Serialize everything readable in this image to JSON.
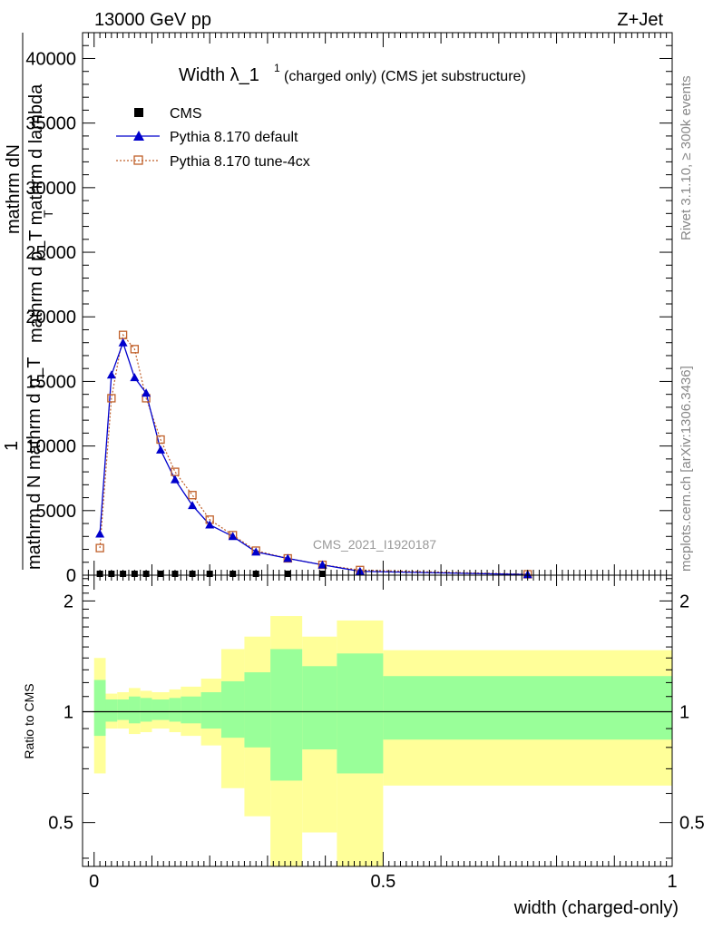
{
  "header": {
    "energy_label": "13000 GeV pp",
    "process_label": "Z+Jet",
    "rivet_label": "Rivet 3.1.10, ≥ 300k events",
    "mcplots_label": "mcplots.cern.ch [arXiv:1306.3436]",
    "analysis_label": "CMS_2021_I1920187"
  },
  "chart_data": [
    {
      "type": "line",
      "title_main": "Width λ_1",
      "title_sup": "1",
      "title_sub": "(charged only) (CMS jet substructure)",
      "ylabel_top": "mathrm dN",
      "ylabel_mid": "mathrm d p_T mathrm d lambda",
      "ylabel_sub": "T",
      "ylabel_numer": "1",
      "ylabel_denom": "mathrm d N mathrm d p_T",
      "ylim": [
        0,
        42000
      ],
      "xlim": [
        -0.02,
        1.0
      ],
      "yticks": [
        0,
        5000,
        10000,
        15000,
        20000,
        25000,
        30000,
        35000,
        40000
      ],
      "ytick_labels": [
        "0",
        "5000",
        "10000",
        "15000",
        "20000",
        "25000",
        "30000",
        "35000",
        "40000"
      ],
      "legend_placement": "top-left",
      "series": [
        {
          "name": "CMS",
          "color": "#000000",
          "marker": "square",
          "x": [
            0.01,
            0.03,
            0.05,
            0.07,
            0.09,
            0.115,
            0.14,
            0.17,
            0.2,
            0.24,
            0.28,
            0.335,
            0.395
          ],
          "y": [
            0,
            0,
            0,
            0,
            0,
            0,
            0,
            0,
            0,
            0,
            0,
            0,
            0
          ]
        },
        {
          "name": "Pythia 8.170 default",
          "color": "#0000cc",
          "marker": "triangle",
          "x": [
            0.01,
            0.03,
            0.05,
            0.07,
            0.09,
            0.115,
            0.14,
            0.17,
            0.2,
            0.24,
            0.28,
            0.335,
            0.395,
            0.46,
            0.75
          ],
          "y": [
            3200,
            15500,
            18000,
            15300,
            14100,
            9700,
            7400,
            5400,
            3900,
            3000,
            1800,
            1300,
            800,
            300,
            50
          ]
        },
        {
          "name": "Pythia 8.170 tune-4cx",
          "color": "#c0602a",
          "marker": "open-square",
          "x": [
            0.01,
            0.03,
            0.05,
            0.07,
            0.09,
            0.115,
            0.14,
            0.17,
            0.2,
            0.24,
            0.28,
            0.335,
            0.395,
            0.46,
            0.75
          ],
          "y": [
            2100,
            13700,
            18600,
            17500,
            13700,
            10500,
            8000,
            6200,
            4300,
            3100,
            1900,
            1300,
            800,
            400,
            70
          ]
        }
      ]
    },
    {
      "type": "area",
      "ylabel": "Ratio to CMS",
      "xlabel": "width (charged-only)",
      "ylim": [
        0.38,
        2.35
      ],
      "yscale": "log",
      "yticks": [
        0.5,
        1,
        2
      ],
      "ytick_labels": [
        "0.5",
        "1",
        "2"
      ],
      "xticks": [
        0,
        0.5,
        1
      ],
      "xtick_labels": [
        "0",
        "0.5",
        "1"
      ],
      "reference_line": 1,
      "green_color": "#99ff99",
      "yellow_color": "#ffff99",
      "bins": [
        {
          "x0": 0.0,
          "x1": 0.02,
          "green": [
            0.86,
            1.22
          ],
          "yellow": [
            0.68,
            1.4
          ]
        },
        {
          "x0": 0.02,
          "x1": 0.04,
          "green": [
            0.94,
            1.08
          ],
          "yellow": [
            0.9,
            1.12
          ]
        },
        {
          "x0": 0.04,
          "x1": 0.06,
          "green": [
            0.95,
            1.08
          ],
          "yellow": [
            0.9,
            1.13
          ]
        },
        {
          "x0": 0.06,
          "x1": 0.08,
          "green": [
            0.93,
            1.1
          ],
          "yellow": [
            0.87,
            1.16
          ]
        },
        {
          "x0": 0.08,
          "x1": 0.1,
          "green": [
            0.94,
            1.09
          ],
          "yellow": [
            0.88,
            1.14
          ]
        },
        {
          "x0": 0.1,
          "x1": 0.13,
          "green": [
            0.95,
            1.08
          ],
          "yellow": [
            0.9,
            1.13
          ]
        },
        {
          "x0": 0.13,
          "x1": 0.15,
          "green": [
            0.94,
            1.09
          ],
          "yellow": [
            0.88,
            1.15
          ]
        },
        {
          "x0": 0.15,
          "x1": 0.185,
          "green": [
            0.93,
            1.1
          ],
          "yellow": [
            0.86,
            1.17
          ]
        },
        {
          "x0": 0.185,
          "x1": 0.22,
          "green": [
            0.9,
            1.13
          ],
          "yellow": [
            0.81,
            1.23
          ]
        },
        {
          "x0": 0.22,
          "x1": 0.26,
          "green": [
            0.85,
            1.21
          ],
          "yellow": [
            0.62,
            1.48
          ]
        },
        {
          "x0": 0.26,
          "x1": 0.305,
          "green": [
            0.8,
            1.28
          ],
          "yellow": [
            0.52,
            1.6
          ]
        },
        {
          "x0": 0.305,
          "x1": 0.36,
          "green": [
            0.65,
            1.48
          ],
          "yellow": [
            0.3,
            1.82
          ]
        },
        {
          "x0": 0.36,
          "x1": 0.42,
          "green": [
            0.79,
            1.33
          ],
          "yellow": [
            0.47,
            1.6
          ]
        },
        {
          "x0": 0.42,
          "x1": 0.5,
          "green": [
            0.68,
            1.44
          ],
          "yellow": [
            0.3,
            1.77
          ]
        },
        {
          "x0": 0.5,
          "x1": 1.0,
          "green": [
            0.84,
            1.25
          ],
          "yellow": [
            0.63,
            1.47
          ]
        }
      ]
    }
  ]
}
